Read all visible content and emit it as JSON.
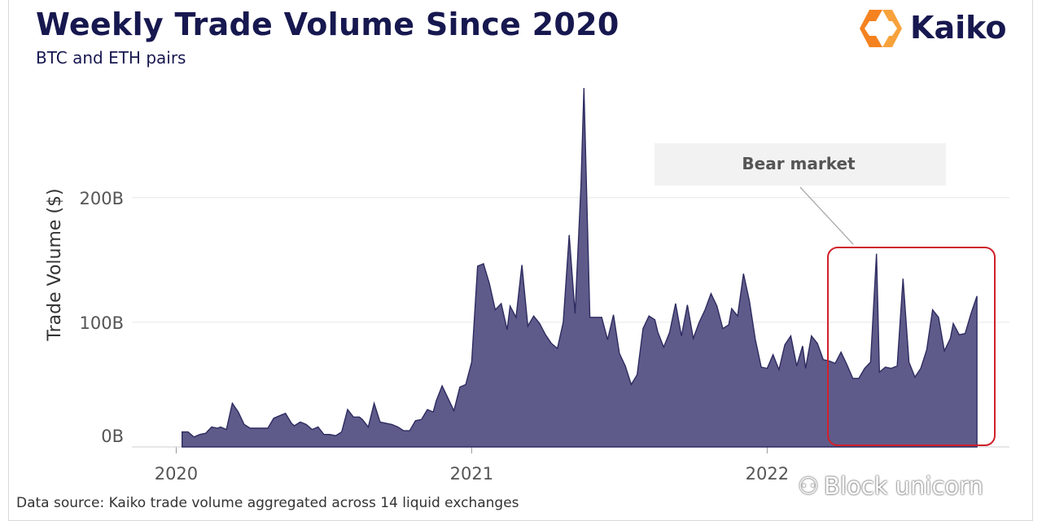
{
  "title": "Weekly Trade Volume Since 2020",
  "subtitle": "BTC and ETH pairs",
  "logo_text": "Kaiko",
  "footer": "Data source: Kaiko trade volume aggregated across 14 liquid exchanges",
  "watermark": "Block unicorn",
  "colors": {
    "area": "#5e5b8a",
    "line": "#2d2b60",
    "title": "#17184f",
    "highlight": "#d0202a",
    "logo_orange": "#f58220"
  },
  "chart_data": {
    "type": "area",
    "title": "Weekly Trade Volume Since 2020",
    "subtitle": "BTC and ETH pairs",
    "ylabel": "Trade Volume ($)",
    "xlabel": "",
    "ylim": [
      0,
      290
    ],
    "y_unit": "B",
    "y_ticks": [
      {
        "value": 0,
        "label": "0B"
      },
      {
        "value": 100,
        "label": "100B"
      },
      {
        "value": 200,
        "label": "200B"
      }
    ],
    "x_ticks": [
      {
        "value": 2020,
        "label": "2020"
      },
      {
        "value": 2021,
        "label": "2021"
      },
      {
        "value": 2022,
        "label": "2022"
      }
    ],
    "xlim": [
      2019.85,
      2022.82
    ],
    "grid": true,
    "series": [
      {
        "x": [
          2020.02,
          2020.04,
          2020.06,
          2020.08,
          2020.1,
          2020.12,
          2020.14,
          2020.15,
          2020.17,
          2020.19,
          2020.21,
          2020.23,
          2020.25,
          2020.27,
          2020.29,
          2020.31,
          2020.33,
          2020.35,
          2020.37,
          2020.39,
          2020.4,
          2020.42,
          2020.44,
          2020.46,
          2020.48,
          2020.5,
          2020.52,
          2020.54,
          2020.56,
          2020.58,
          2020.6,
          2020.62,
          2020.63,
          2020.65,
          2020.67,
          2020.69,
          2020.71,
          2020.73,
          2020.75,
          2020.77,
          2020.79,
          2020.81,
          2020.83,
          2020.85,
          2020.87,
          2020.88,
          2020.9,
          2020.92,
          2020.94,
          2020.96,
          2020.98,
          2021.0,
          2021.02,
          2021.04,
          2021.06,
          2021.08,
          2021.1,
          2021.12,
          2021.13,
          2021.15,
          2021.17,
          2021.19,
          2021.21,
          2021.23,
          2021.25,
          2021.27,
          2021.29,
          2021.31,
          2021.33,
          2021.35,
          2021.37,
          2021.38,
          2021.4,
          2021.42,
          2021.44,
          2021.46,
          2021.48,
          2021.5,
          2021.52,
          2021.54,
          2021.56,
          2021.58,
          2021.6,
          2021.62,
          2021.63,
          2021.65,
          2021.67,
          2021.69,
          2021.71,
          2021.73,
          2021.75,
          2021.77,
          2021.79,
          2021.81,
          2021.83,
          2021.85,
          2021.87,
          2021.88,
          2021.9,
          2021.92,
          2021.94,
          2021.96,
          2021.98,
          2022.0,
          2022.02,
          2022.04,
          2022.06,
          2022.08,
          2022.1,
          2022.12,
          2022.13,
          2022.15,
          2022.17,
          2022.19,
          2022.21,
          2022.23,
          2022.25,
          2022.27,
          2022.29,
          2022.31,
          2022.33,
          2022.35,
          2022.37,
          2022.38,
          2022.4,
          2022.42,
          2022.44,
          2022.46,
          2022.48,
          2022.5,
          2022.52,
          2022.54,
          2022.56,
          2022.58,
          2022.6,
          2022.62,
          2022.63,
          2022.65,
          2022.67,
          2022.69,
          2022.71
        ],
        "values": [
          12,
          12,
          8,
          10,
          11,
          16,
          15,
          16,
          14,
          35,
          28,
          18,
          15,
          15,
          15,
          15,
          23,
          25,
          27,
          19,
          17,
          20,
          18,
          14,
          16,
          10,
          10,
          9,
          12,
          30,
          24,
          24,
          22,
          16,
          35,
          20,
          19,
          18,
          16,
          13,
          13,
          21,
          22,
          30,
          28,
          37,
          49,
          39,
          29,
          48,
          50,
          68,
          145,
          147,
          131,
          110,
          115,
          94,
          113,
          104,
          146,
          97,
          105,
          99,
          90,
          83,
          79,
          100,
          170,
          107,
          210,
          288,
          104,
          104,
          104,
          86,
          106,
          75,
          65,
          50,
          58,
          95,
          105,
          102,
          92,
          80,
          92,
          115,
          89,
          114,
          87,
          100,
          110,
          123,
          113,
          95,
          98,
          111,
          105,
          139,
          117,
          86,
          64,
          63,
          74,
          62,
          82,
          89,
          65,
          81,
          63,
          89,
          83,
          70,
          69,
          67,
          76,
          66,
          55,
          55,
          63,
          68,
          155,
          60,
          64,
          63,
          65,
          135,
          68,
          56,
          63,
          78,
          110,
          104,
          77,
          87,
          99,
          90,
          91,
          107,
          121
        ],
        "name": ""
      }
    ],
    "annotation": {
      "text": "Bear market",
      "x_start": 2022.21,
      "x_end": 2022.73
    }
  }
}
